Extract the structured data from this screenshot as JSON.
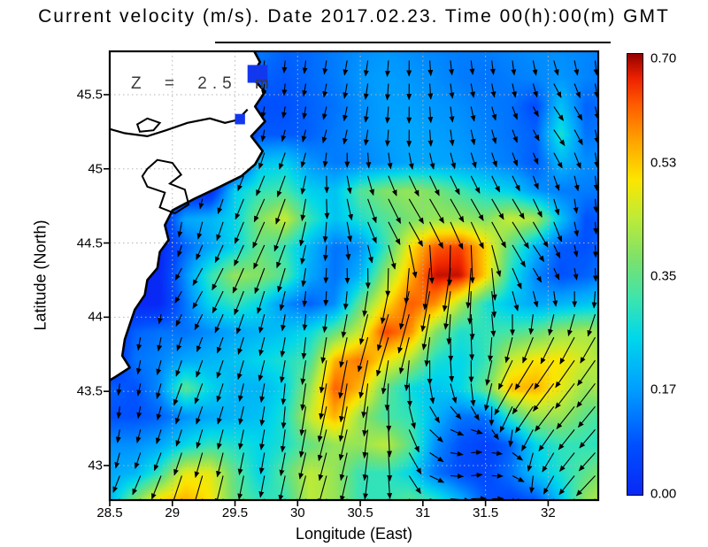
{
  "title": "Current velocity (m/s). Date 2017.02.23. Time 00(h):00(m) GMT",
  "annotation": "Z = 2.5 m",
  "axes": {
    "x_label": "Longitude (East)",
    "y_label": "Latitude (North)",
    "x_ticks": [
      28.5,
      29,
      29.5,
      30,
      30.5,
      31,
      31.5,
      32
    ],
    "x_tick_labels": [
      "28.5",
      "29",
      "29.5",
      "30",
      "30.5",
      "31",
      "31.5",
      "32"
    ],
    "y_ticks": [
      45.5,
      45,
      44.5,
      44,
      43.5,
      43
    ],
    "y_tick_labels": [
      "45.5",
      "45",
      "44.5",
      "44",
      "43.5",
      "43"
    ],
    "lon_range": [
      28.5,
      32.4
    ],
    "lat_range": [
      42.767,
      45.792
    ],
    "grid_color": "#b5b5b5"
  },
  "colorbar": {
    "min": 0.0,
    "max": 0.7,
    "ticks": [
      0.0,
      0.17,
      0.35,
      0.53,
      0.7
    ],
    "tick_labels": [
      "0.00",
      "0.17",
      "0.35",
      "0.53",
      "0.70"
    ],
    "stops": [
      [
        0.0,
        "#0828f5"
      ],
      [
        0.08,
        "#0050ff"
      ],
      [
        0.17,
        "#00a0ff"
      ],
      [
        0.25,
        "#00d7eb"
      ],
      [
        0.31,
        "#3ce4af"
      ],
      [
        0.37,
        "#78e16e"
      ],
      [
        0.44,
        "#beeb37"
      ],
      [
        0.5,
        "#fce600"
      ],
      [
        0.56,
        "#ffa500"
      ],
      [
        0.62,
        "#ff5a00"
      ],
      [
        0.66,
        "#ee2300"
      ],
      [
        0.7,
        "#960000"
      ]
    ]
  },
  "chart_data": {
    "type": "heatmap",
    "quantity": "sea surface current speed with direction vectors",
    "units": "m/s",
    "lon": [
      28.5,
      28.7,
      28.9,
      29.1,
      29.3,
      29.5,
      29.7,
      29.9,
      30.1,
      30.3,
      30.5,
      30.7,
      30.9,
      31.1,
      31.3,
      31.5,
      31.7,
      31.9,
      32.1,
      32.3,
      32.5
    ],
    "lat": [
      45.8,
      45.61,
      45.42,
      45.23,
      45.04,
      44.85,
      44.66,
      44.47,
      44.28,
      44.09,
      43.9,
      43.71,
      43.52,
      43.33,
      43.14,
      42.95,
      42.76
    ],
    "speed": [
      [
        0,
        0,
        0,
        0,
        0,
        0,
        0.13,
        0.1,
        0.11,
        0.13,
        0.15,
        0.16,
        0.15,
        0.14,
        0.13,
        0.13,
        0.14,
        0.15,
        0.15,
        0.14,
        0.13
      ],
      [
        0,
        0,
        0,
        0,
        0,
        0,
        0.1,
        0.09,
        0.11,
        0.13,
        0.16,
        0.17,
        0.16,
        0.15,
        0.13,
        0.12,
        0.13,
        0.14,
        0.16,
        0.14,
        0.12
      ],
      [
        0,
        0,
        0,
        0,
        0,
        0,
        0.08,
        0.08,
        0.1,
        0.12,
        0.15,
        0.17,
        0.17,
        0.16,
        0.15,
        0.13,
        0.12,
        0.07,
        0.22,
        0.1,
        0.12
      ],
      [
        0,
        0,
        0,
        0,
        0,
        0,
        0.09,
        0.09,
        0.1,
        0.13,
        0.15,
        0.17,
        0.18,
        0.17,
        0.16,
        0.14,
        0.12,
        0.1,
        0.28,
        0.12,
        0.14
      ],
      [
        0,
        0,
        0,
        0,
        0,
        0,
        0.22,
        0.24,
        0.16,
        0.13,
        0.14,
        0.16,
        0.18,
        0.18,
        0.17,
        0.15,
        0.13,
        0.09,
        0.2,
        0.15,
        0.15
      ],
      [
        0,
        0,
        0,
        0,
        0,
        0.24,
        0.3,
        0.32,
        0.24,
        0.22,
        0.33,
        0.38,
        0.4,
        0.37,
        0.32,
        0.27,
        0.24,
        0.16,
        0.13,
        0.13,
        0.12
      ],
      [
        0,
        0,
        0,
        0.18,
        0.2,
        0.25,
        0.38,
        0.45,
        0.3,
        0.22,
        0.28,
        0.33,
        0.37,
        0.4,
        0.4,
        0.38,
        0.45,
        0.42,
        0.22,
        0.08,
        0.1
      ],
      [
        0,
        0,
        0,
        0.1,
        0.18,
        0.25,
        0.35,
        0.3,
        0.2,
        0.12,
        0.15,
        0.3,
        0.5,
        0.62,
        0.64,
        0.52,
        0.33,
        0.2,
        0.09,
        0.08,
        0.12
      ],
      [
        0,
        0,
        0,
        0.15,
        0.3,
        0.4,
        0.38,
        0.33,
        0.18,
        0.12,
        0.2,
        0.4,
        0.55,
        0.68,
        0.68,
        0.52,
        0.28,
        0.14,
        0.08,
        0.1,
        0.14
      ],
      [
        0,
        0,
        0,
        0.12,
        0.25,
        0.3,
        0.25,
        0.15,
        0.1,
        0.15,
        0.35,
        0.5,
        0.62,
        0.58,
        0.42,
        0.28,
        0.22,
        0.18,
        0.2,
        0.22,
        0.25
      ],
      [
        0,
        0.1,
        0.12,
        0.12,
        0.15,
        0.18,
        0.2,
        0.22,
        0.26,
        0.35,
        0.45,
        0.64,
        0.58,
        0.38,
        0.28,
        0.3,
        0.32,
        0.35,
        0.4,
        0.42,
        0.38
      ],
      [
        0,
        0.12,
        0.14,
        0.18,
        0.2,
        0.22,
        0.25,
        0.28,
        0.32,
        0.55,
        0.6,
        0.5,
        0.42,
        0.28,
        0.25,
        0.3,
        0.45,
        0.5,
        0.5,
        0.45,
        0.4
      ],
      [
        0.1,
        0.08,
        0.15,
        0.34,
        0.25,
        0.2,
        0.2,
        0.25,
        0.4,
        0.62,
        0.54,
        0.35,
        0.26,
        0.22,
        0.25,
        0.35,
        0.54,
        0.55,
        0.48,
        0.4,
        0.44
      ],
      [
        0.08,
        0.08,
        0.1,
        0.15,
        0.18,
        0.2,
        0.22,
        0.28,
        0.45,
        0.55,
        0.4,
        0.32,
        0.3,
        0.2,
        0.12,
        0.12,
        0.3,
        0.4,
        0.4,
        0.34,
        0.3
      ],
      [
        0.15,
        0.15,
        0.18,
        0.25,
        0.3,
        0.28,
        0.25,
        0.28,
        0.35,
        0.4,
        0.4,
        0.44,
        0.34,
        0.15,
        0.08,
        0.05,
        0.1,
        0.25,
        0.3,
        0.3,
        0.28
      ],
      [
        0.18,
        0.2,
        0.3,
        0.48,
        0.48,
        0.34,
        0.25,
        0.34,
        0.44,
        0.4,
        0.3,
        0.3,
        0.25,
        0.12,
        0.07,
        0.06,
        0.12,
        0.22,
        0.28,
        0.34,
        0.4
      ],
      [
        0.2,
        0.38,
        0.52,
        0.55,
        0.5,
        0.35,
        0.3,
        0.3,
        0.44,
        0.4,
        0.3,
        0.3,
        0.34,
        0.3,
        0.2,
        0.09,
        0.06,
        0.08,
        0.22,
        0.4,
        0.45
      ]
    ],
    "flow_dir_deg_math": [
      [
        -90,
        -90,
        -90,
        -90,
        -90,
        -90,
        -95,
        -95,
        -95,
        -100,
        -100,
        -95,
        -90,
        -85,
        -85,
        -85,
        -85,
        -80,
        -80,
        -85,
        -85
      ],
      [
        -90,
        -90,
        -90,
        -90,
        -90,
        -90,
        -95,
        -95,
        -100,
        -100,
        -100,
        -95,
        -90,
        -85,
        -80,
        -80,
        -80,
        -75,
        -60,
        -80,
        -85
      ],
      [
        -90,
        -90,
        -90,
        -90,
        -90,
        -90,
        -100,
        -100,
        -100,
        -105,
        -100,
        -95,
        -90,
        -85,
        -80,
        -75,
        -70,
        -60,
        -55,
        -70,
        -85
      ],
      [
        -90,
        -90,
        -90,
        -90,
        -90,
        -95,
        -100,
        -105,
        -105,
        -105,
        -100,
        -95,
        -90,
        -85,
        -80,
        -75,
        -70,
        -60,
        -55,
        -75,
        -85
      ],
      [
        -90,
        -90,
        -90,
        -90,
        -90,
        -95,
        -110,
        -110,
        -105,
        -85,
        -80,
        -75,
        -72,
        -72,
        -70,
        -70,
        -70,
        -70,
        -65,
        -80,
        -85
      ],
      [
        -90,
        -90,
        -90,
        -90,
        -95,
        -110,
        -115,
        -110,
        -95,
        -80,
        -75,
        -65,
        -60,
        -60,
        -60,
        -60,
        -60,
        -70,
        -80,
        -85,
        -85
      ],
      [
        -90,
        -90,
        -90,
        -100,
        -105,
        -110,
        -115,
        -110,
        -100,
        -90,
        -70,
        -62,
        -58,
        -60,
        -62,
        -60,
        -58,
        -60,
        -75,
        -85,
        -85
      ],
      [
        -90,
        -90,
        -90,
        -110,
        -115,
        -115,
        -115,
        -110,
        -100,
        -90,
        -80,
        -75,
        -80,
        -90,
        -95,
        -80,
        -60,
        -55,
        -70,
        -85,
        -90
      ],
      [
        -90,
        -90,
        -90,
        -120,
        -120,
        -115,
        -110,
        -105,
        -95,
        -90,
        -90,
        -95,
        -100,
        -100,
        -100,
        -90,
        -70,
        -60,
        -70,
        -85,
        -90
      ],
      [
        -90,
        -90,
        -90,
        -120,
        -118,
        -112,
        -105,
        -100,
        -92,
        -95,
        -100,
        -105,
        -105,
        -100,
        -90,
        -80,
        -80,
        -85,
        -90,
        -95,
        -100
      ],
      [
        -90,
        -100,
        -100,
        -110,
        -112,
        -110,
        -105,
        -100,
        -95,
        -100,
        -105,
        -108,
        -105,
        -95,
        -85,
        -90,
        -100,
        -110,
        -115,
        -118,
        -120
      ],
      [
        -95,
        -100,
        -105,
        -110,
        -110,
        -108,
        -105,
        -100,
        -98,
        -100,
        -102,
        -100,
        -95,
        -88,
        -85,
        -95,
        -115,
        -122,
        -125,
        -125,
        -125
      ],
      [
        -95,
        -100,
        -105,
        -110,
        -110,
        -105,
        -100,
        -95,
        -98,
        -100,
        -98,
        -92,
        -85,
        -75,
        -70,
        -95,
        -120,
        -125,
        -128,
        -128,
        -128
      ],
      [
        -95,
        -100,
        -105,
        -108,
        -108,
        -105,
        -100,
        -95,
        -100,
        -105,
        -100,
        -90,
        -70,
        -40,
        -20,
        -40,
        -110,
        -125,
        -128,
        -130,
        -130
      ],
      [
        -100,
        -105,
        -110,
        -108,
        -105,
        -102,
        -100,
        -100,
        -102,
        -105,
        -100,
        -90,
        -60,
        -20,
        0,
        5,
        -30,
        -110,
        -125,
        -130,
        -132
      ],
      [
        -110,
        -112,
        -112,
        -108,
        -105,
        -102,
        -100,
        -102,
        -105,
        -105,
        -100,
        -90,
        -55,
        -10,
        5,
        10,
        -20,
        -100,
        -125,
        -132,
        -135
      ],
      [
        -115,
        -115,
        -112,
        -108,
        -105,
        -103,
        -102,
        -104,
        -106,
        -105,
        -100,
        -90,
        -55,
        -10,
        0,
        5,
        -15,
        -90,
        -120,
        -132,
        -135
      ]
    ],
    "land_polygon": [
      [
        29.63,
        45.83
      ],
      [
        29.7,
        45.72
      ],
      [
        29.63,
        45.62
      ],
      [
        29.74,
        45.52
      ],
      [
        29.66,
        45.42
      ],
      [
        29.74,
        45.32
      ],
      [
        29.63,
        45.22
      ],
      [
        29.72,
        45.12
      ],
      [
        29.66,
        45.03
      ],
      [
        29.55,
        44.95
      ],
      [
        29.38,
        44.88
      ],
      [
        29.18,
        44.8
      ],
      [
        29.0,
        44.72
      ],
      [
        28.94,
        44.62
      ],
      [
        28.97,
        44.52
      ],
      [
        28.9,
        44.44
      ],
      [
        28.88,
        44.33
      ],
      [
        28.8,
        44.25
      ],
      [
        28.78,
        44.15
      ],
      [
        28.7,
        44.05
      ],
      [
        28.66,
        43.95
      ],
      [
        28.62,
        43.85
      ],
      [
        28.6,
        43.74
      ],
      [
        28.66,
        43.66
      ],
      [
        28.55,
        43.6
      ],
      [
        28.45,
        43.55
      ],
      [
        28.45,
        45.9
      ]
    ],
    "lagoon_polygons": [
      [
        [
          28.8,
          45.0
        ],
        [
          28.88,
          45.06
        ],
        [
          29.0,
          45.04
        ],
        [
          29.07,
          44.96
        ],
        [
          28.98,
          44.9
        ],
        [
          29.1,
          44.86
        ],
        [
          29.13,
          44.76
        ],
        [
          29.02,
          44.7
        ],
        [
          28.9,
          44.74
        ],
        [
          28.94,
          44.84
        ],
        [
          28.8,
          44.88
        ],
        [
          28.76,
          44.95
        ]
      ],
      [
        [
          28.72,
          45.3
        ],
        [
          28.8,
          45.34
        ],
        [
          28.9,
          45.31
        ],
        [
          28.85,
          45.26
        ],
        [
          28.74,
          45.25
        ]
      ]
    ],
    "danube_line": [
      [
        28.45,
        45.28
      ],
      [
        28.62,
        45.24
      ],
      [
        28.8,
        45.22
      ],
      [
        28.95,
        45.26
      ],
      [
        29.12,
        45.31
      ],
      [
        29.3,
        45.34
      ],
      [
        29.42,
        45.31
      ],
      [
        29.52,
        45.33
      ],
      [
        29.6,
        45.4
      ]
    ],
    "river_mouth_rects": [
      [
        29.6,
        45.58,
        29.76,
        45.7
      ],
      [
        29.5,
        45.3,
        29.58,
        45.37
      ]
    ],
    "river_mouth_color": "#1238ef",
    "arrow_color": "#000000"
  }
}
